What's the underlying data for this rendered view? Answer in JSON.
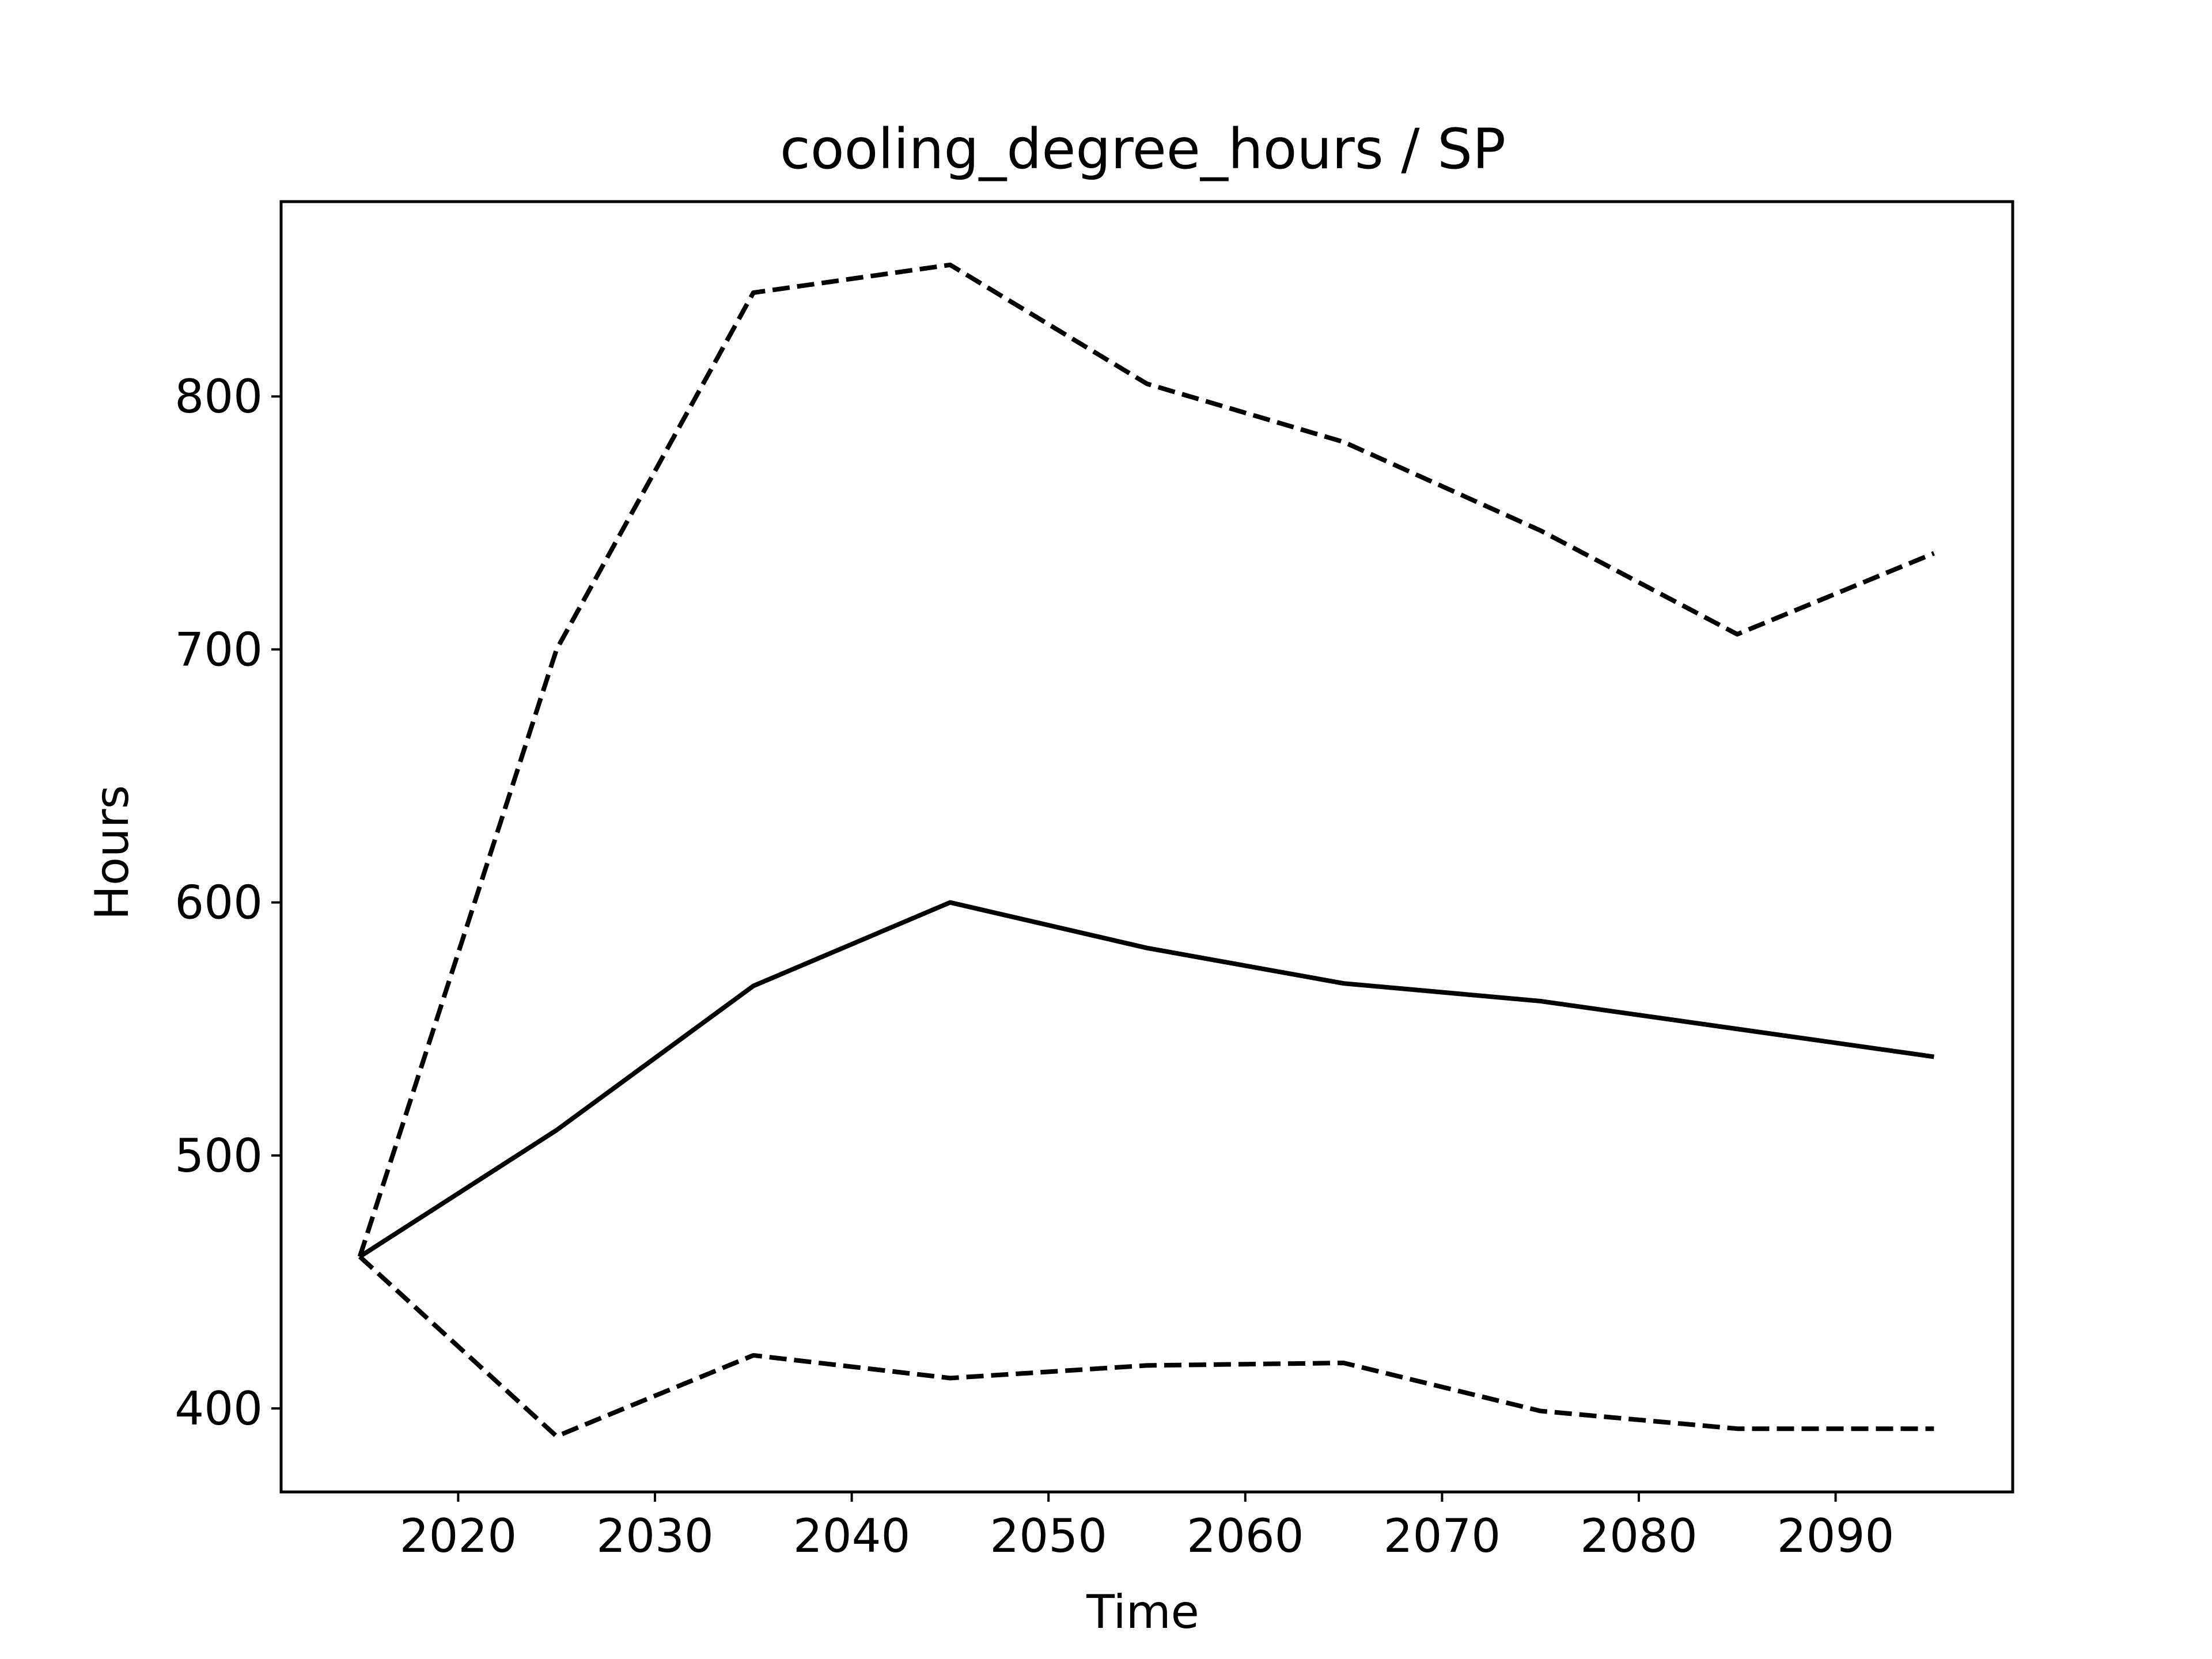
{
  "chart_data": {
    "type": "line",
    "title": "cooling_degree_hours / SP",
    "xlabel": "Time",
    "ylabel": "Hours",
    "xlim": [
      2011,
      2099
    ],
    "ylim": [
      367,
      877
    ],
    "xticks": [
      2020,
      2030,
      2040,
      2050,
      2060,
      2070,
      2080,
      2090
    ],
    "yticks": [
      400,
      500,
      600,
      700,
      800
    ],
    "grid": false,
    "x": [
      2015,
      2025,
      2035,
      2045,
      2055,
      2065,
      2075,
      2085,
      2095
    ],
    "series": [
      {
        "style": "solid",
        "color": "#000000",
        "values": [
          460,
          510,
          567,
          600,
          582,
          568,
          561,
          550,
          539
        ]
      },
      {
        "style": "dashed",
        "color": "#000000",
        "values": [
          460,
          700,
          841,
          852,
          805,
          782,
          747,
          706,
          738
        ]
      },
      {
        "style": "dashed",
        "color": "#000000",
        "values": [
          460,
          389,
          421,
          412,
          417,
          418,
          399,
          392,
          392
        ]
      }
    ]
  }
}
